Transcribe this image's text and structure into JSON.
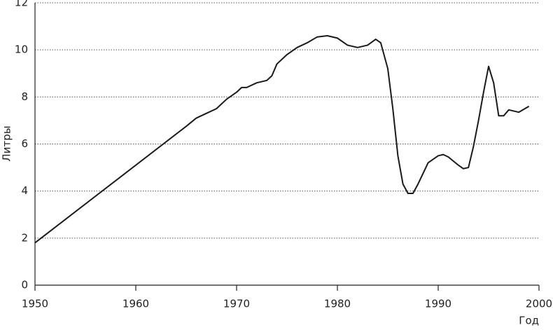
{
  "chart_data": {
    "type": "line",
    "x_label": "Год",
    "y_label": "Литры",
    "xlim": [
      1950,
      2000
    ],
    "xticks": [
      1950,
      1960,
      1970,
      1980,
      1990,
      2000
    ],
    "ylim": [
      0,
      12
    ],
    "yticks": [
      0,
      2,
      4,
      6,
      8,
      10,
      12
    ],
    "grid": true,
    "color": "#1a1a1a",
    "x": [
      1950,
      1965,
      1966,
      1967,
      1968,
      1969,
      1970,
      1970.5,
      1971,
      1972,
      1973,
      1973.5,
      1974,
      1975,
      1976,
      1977,
      1978,
      1979,
      1980,
      1981,
      1982,
      1983,
      1983.8,
      1984.3,
      1985,
      1985.5,
      1986,
      1986.5,
      1987,
      1987.5,
      1988,
      1989,
      1990,
      1990.5,
      1991,
      1992,
      1992.5,
      1993,
      1993.5,
      1994,
      1994.5,
      1995,
      1995.5,
      1996,
      1996.5,
      1997,
      1998,
      1999
    ],
    "values": [
      1.8,
      6.75,
      7.1,
      7.3,
      7.5,
      7.9,
      8.2,
      8.4,
      8.4,
      8.6,
      8.7,
      8.9,
      9.4,
      9.8,
      10.1,
      10.3,
      10.55,
      10.6,
      10.5,
      10.2,
      10.1,
      10.2,
      10.45,
      10.3,
      9.2,
      7.5,
      5.5,
      4.3,
      3.9,
      3.9,
      4.3,
      5.2,
      5.5,
      5.55,
      5.45,
      5.1,
      4.95,
      5.0,
      5.9,
      7.0,
      8.2,
      9.3,
      8.6,
      7.2,
      7.2,
      7.45,
      7.35,
      7.6
    ]
  }
}
